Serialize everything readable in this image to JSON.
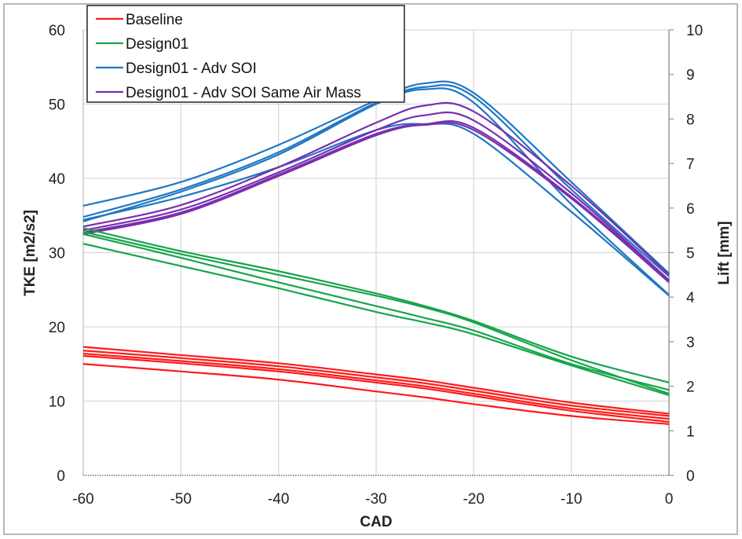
{
  "chart_data": {
    "type": "line",
    "title": "",
    "xlabel": "CAD",
    "ylabel": "TKE [m2/s2]",
    "y2label": "Lift [mm]",
    "xlim": [
      -60,
      0
    ],
    "ylim": [
      0,
      60
    ],
    "y2lim": [
      0,
      10
    ],
    "x_ticks": [
      "-60",
      "-50",
      "-40",
      "-30",
      "-20",
      "-10",
      "0"
    ],
    "y_ticks": [
      "0",
      "10",
      "20",
      "30",
      "40",
      "50",
      "60"
    ],
    "y2_ticks": [
      "0",
      "1",
      "2",
      "3",
      "4",
      "5",
      "6",
      "7",
      "8",
      "9",
      "10"
    ],
    "grid": true,
    "legend_position": "top-left",
    "legend": [
      {
        "name": "Baseline",
        "color": "#ff1a1a"
      },
      {
        "name": "Design01",
        "color": "#16a54a"
      },
      {
        "name": "Design01 - Adv SOI",
        "color": "#1f77c4"
      },
      {
        "name": "Design01 - Adv SOI Same Air Mass",
        "color": "#7a2fb0"
      }
    ],
    "x": [
      -60,
      -50,
      -40,
      -30,
      -25,
      -20,
      -10,
      0
    ],
    "series": [
      {
        "name": "Design01 - Adv SOI",
        "group": 2,
        "values": [
          36.3,
          39.5,
          44.5,
          50.5,
          52.8,
          51.5,
          39.5,
          27.2
        ]
      },
      {
        "name": "Design01 - Adv SOI",
        "group": 2,
        "values": [
          34.8,
          38.5,
          43.5,
          50.2,
          52.3,
          51.0,
          38.5,
          26.8
        ]
      },
      {
        "name": "Design01 - Adv SOI",
        "group": 2,
        "values": [
          34.2,
          38.2,
          43.2,
          50.0,
          52.0,
          50.2,
          36.5,
          24.3
        ]
      },
      {
        "name": "Design01 - Adv SOI",
        "group": 2,
        "values": [
          34.4,
          37.5,
          41.5,
          46.5,
          47.3,
          46.0,
          35.5,
          24.2
        ]
      },
      {
        "name": "Design01 - Adv SOI Same Air Mass",
        "group": 3,
        "values": [
          33.5,
          36.4,
          41.5,
          47.5,
          49.8,
          49.0,
          39.0,
          27.0
        ]
      },
      {
        "name": "Design01 - Adv SOI Same Air Mass",
        "group": 3,
        "values": [
          33.0,
          35.8,
          40.8,
          46.5,
          48.5,
          47.8,
          38.0,
          26.3
        ]
      },
      {
        "name": "Design01 - Adv SOI Same Air Mass",
        "group": 3,
        "values": [
          32.7,
          35.4,
          40.5,
          46.0,
          47.3,
          46.8,
          37.5,
          26.2
        ]
      },
      {
        "name": "Design01 - Adv SOI Same Air Mass",
        "group": 3,
        "values": [
          32.5,
          35.2,
          40.3,
          45.8,
          47.2,
          46.5,
          37.3,
          26.0
        ]
      },
      {
        "name": "Design01",
        "group": 1,
        "values": [
          33.3,
          30.2,
          27.5,
          24.5,
          22.8,
          20.8,
          16.0,
          12.5
        ]
      },
      {
        "name": "Design01",
        "group": 1,
        "values": [
          32.8,
          29.8,
          27.0,
          24.2,
          22.6,
          20.6,
          15.5,
          11.0
        ]
      },
      {
        "name": "Design01",
        "group": 1,
        "values": [
          32.5,
          29.3,
          26.0,
          22.8,
          21.2,
          19.5,
          15.0,
          11.5
        ]
      },
      {
        "name": "Design01",
        "group": 1,
        "values": [
          31.2,
          28.2,
          25.2,
          22.0,
          20.6,
          19.0,
          14.8,
          10.8
        ]
      },
      {
        "name": "Baseline",
        "group": 0,
        "values": [
          17.3,
          16.2,
          15.1,
          13.6,
          12.8,
          11.8,
          9.8,
          8.3
        ]
      },
      {
        "name": "Baseline",
        "group": 0,
        "values": [
          16.8,
          15.8,
          14.7,
          13.2,
          12.4,
          11.4,
          9.4,
          8.0
        ]
      },
      {
        "name": "Baseline",
        "group": 0,
        "values": [
          16.4,
          15.4,
          14.3,
          12.8,
          12.0,
          11.0,
          9.0,
          7.6
        ]
      },
      {
        "name": "Baseline",
        "group": 0,
        "values": [
          16.1,
          15.1,
          14.0,
          12.5,
          11.7,
          10.7,
          8.7,
          7.2
        ]
      },
      {
        "name": "Baseline",
        "group": 0,
        "values": [
          15.0,
          14.0,
          12.9,
          11.3,
          10.5,
          9.6,
          8.0,
          6.9
        ]
      }
    ]
  }
}
